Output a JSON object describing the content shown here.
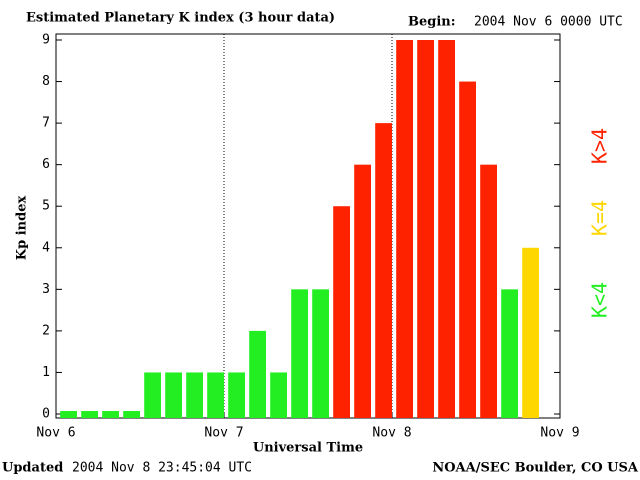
{
  "chart_data": {
    "type": "bar",
    "title": "Estimated Planetary K index (3 hour data)",
    "begin_label": "Begin:",
    "begin": "2004 Nov 6 0000 UTC",
    "ylabel": "Kp index",
    "xlabel": "Universal Time",
    "updated_label": "Updated",
    "updated": "2004 Nov  8 23:45:04 UTC",
    "source": "NOAA/SEC Boulder, CO USA",
    "x": [
      0,
      3,
      6,
      9,
      12,
      15,
      18,
      21,
      24,
      27,
      30,
      33,
      36,
      39,
      42,
      45,
      48,
      51,
      54,
      57,
      60,
      63,
      66
    ],
    "values": [
      0,
      0,
      0,
      0,
      1,
      1,
      1,
      1,
      1,
      2,
      1,
      3,
      3,
      5,
      6,
      7,
      9,
      9,
      9,
      8,
      6,
      3,
      4
    ],
    "colors": [
      "#22ee22",
      "#22ee22",
      "#22ee22",
      "#22ee22",
      "#22ee22",
      "#22ee22",
      "#22ee22",
      "#22ee22",
      "#22ee22",
      "#22ee22",
      "#22ee22",
      "#22ee22",
      "#22ee22",
      "#ff2200",
      "#ff2200",
      "#ff2200",
      "#ff2200",
      "#ff2200",
      "#ff2200",
      "#ff2200",
      "#ff2200",
      "#22ee22",
      "#ffd700"
    ],
    "legend": [
      {
        "name": "K<4",
        "color": "#22ee22"
      },
      {
        "name": "K=4",
        "color": "#ffd700"
      },
      {
        "name": "K>4",
        "color": "#ff2200"
      }
    ],
    "xlim": [
      0,
      72
    ],
    "xticks": [
      {
        "value": 0,
        "label": "Nov 6"
      },
      {
        "value": 24,
        "label": "Nov 7"
      },
      {
        "value": 48,
        "label": "Nov 8"
      },
      {
        "value": 72,
        "label": "Nov 9"
      }
    ],
    "ylim": [
      0,
      9
    ],
    "yticks": [
      0,
      1,
      2,
      3,
      4,
      5,
      6,
      7,
      8,
      9
    ],
    "grid_x": [
      24,
      48
    ]
  }
}
